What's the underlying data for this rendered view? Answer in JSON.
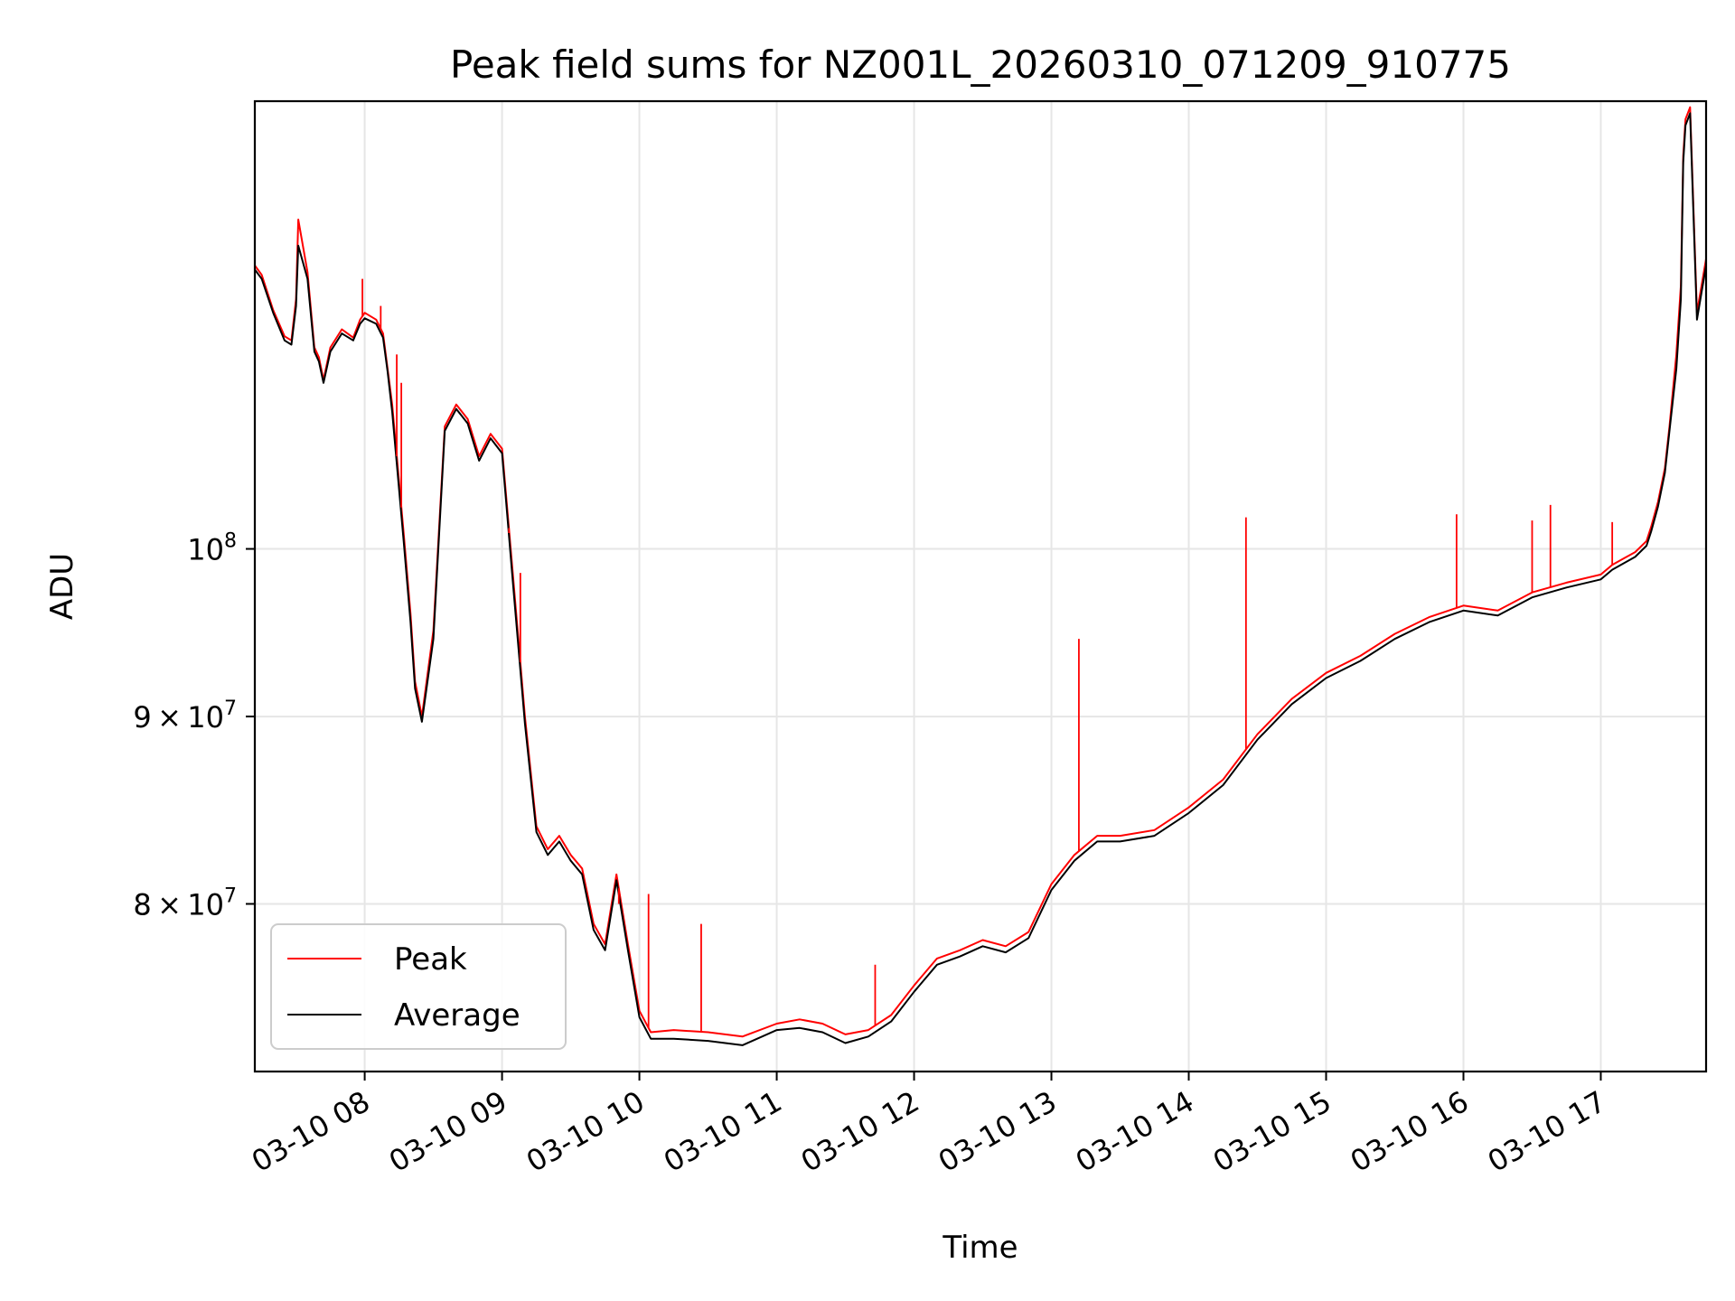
{
  "chart_data": {
    "type": "line",
    "title": "Peak field sums for NZ001L_20260310_071209_910775",
    "xlabel": "Time",
    "ylabel": "ADU",
    "y_scale": "log",
    "grid": true,
    "legend_position": "lower-left",
    "xlim": [
      "2026-03-10 07:12",
      "2026-03-10 17:46"
    ],
    "ylim": [
      72000000,
      132500000
    ],
    "x_ticks": [
      {
        "value": "2026-03-10 08:00",
        "label": "03-10 08"
      },
      {
        "value": "2026-03-10 09:00",
        "label": "03-10 09"
      },
      {
        "value": "2026-03-10 10:00",
        "label": "03-10 10"
      },
      {
        "value": "2026-03-10 11:00",
        "label": "03-10 11"
      },
      {
        "value": "2026-03-10 12:00",
        "label": "03-10 12"
      },
      {
        "value": "2026-03-10 13:00",
        "label": "03-10 13"
      },
      {
        "value": "2026-03-10 14:00",
        "label": "03-10 14"
      },
      {
        "value": "2026-03-10 15:00",
        "label": "03-10 15"
      },
      {
        "value": "2026-03-10 16:00",
        "label": "03-10 16"
      },
      {
        "value": "2026-03-10 17:00",
        "label": "03-10 17"
      }
    ],
    "y_ticks": [
      {
        "value": 80000000,
        "base": "8",
        "exp": "7"
      },
      {
        "value": 90000000,
        "base": "9",
        "exp": "7"
      },
      {
        "value": 100000000,
        "base": "",
        "exp": "8"
      }
    ],
    "tick_mult": "×",
    "tick_ten": "10",
    "series": [
      {
        "name": "Peak",
        "color": "#ff0000",
        "x": [
          "2026-03-10 07:12",
          "2026-03-10 07:15",
          "2026-03-10 07:20",
          "2026-03-10 07:25",
          "2026-03-10 07:28",
          "2026-03-10 07:30",
          "2026-03-10 07:31",
          "2026-03-10 07:35",
          "2026-03-10 07:38",
          "2026-03-10 07:40",
          "2026-03-10 07:42",
          "2026-03-10 07:45",
          "2026-03-10 07:50",
          "2026-03-10 07:55",
          "2026-03-10 07:58",
          "2026-03-10 08:00",
          "2026-03-10 08:05",
          "2026-03-10 08:08",
          "2026-03-10 08:10",
          "2026-03-10 08:12",
          "2026-03-10 08:14",
          "2026-03-10 08:17",
          "2026-03-10 08:20",
          "2026-03-10 08:22",
          "2026-03-10 08:25",
          "2026-03-10 08:30",
          "2026-03-10 08:35",
          "2026-03-10 08:40",
          "2026-03-10 08:45",
          "2026-03-10 08:50",
          "2026-03-10 08:55",
          "2026-03-10 09:00",
          "2026-03-10 09:05",
          "2026-03-10 09:10",
          "2026-03-10 09:15",
          "2026-03-10 09:20",
          "2026-03-10 09:25",
          "2026-03-10 09:30",
          "2026-03-10 09:35",
          "2026-03-10 09:40",
          "2026-03-10 09:45",
          "2026-03-10 09:50",
          "2026-03-10 09:55",
          "2026-03-10 10:00",
          "2026-03-10 10:05",
          "2026-03-10 10:15",
          "2026-03-10 10:30",
          "2026-03-10 10:45",
          "2026-03-10 11:00",
          "2026-03-10 11:10",
          "2026-03-10 11:20",
          "2026-03-10 11:30",
          "2026-03-10 11:40",
          "2026-03-10 11:50",
          "2026-03-10 12:00",
          "2026-03-10 12:10",
          "2026-03-10 12:20",
          "2026-03-10 12:30",
          "2026-03-10 12:40",
          "2026-03-10 12:50",
          "2026-03-10 13:00",
          "2026-03-10 13:10",
          "2026-03-10 13:20",
          "2026-03-10 13:30",
          "2026-03-10 13:45",
          "2026-03-10 14:00",
          "2026-03-10 14:15",
          "2026-03-10 14:30",
          "2026-03-10 14:45",
          "2026-03-10 15:00",
          "2026-03-10 15:15",
          "2026-03-10 15:30",
          "2026-03-10 15:45",
          "2026-03-10 16:00",
          "2026-03-10 16:15",
          "2026-03-10 16:30",
          "2026-03-10 16:45",
          "2026-03-10 17:00",
          "2026-03-10 17:05",
          "2026-03-10 17:10",
          "2026-03-10 17:15",
          "2026-03-10 17:20",
          "2026-03-10 17:22",
          "2026-03-10 17:25",
          "2026-03-10 17:28",
          "2026-03-10 17:30",
          "2026-03-10 17:33",
          "2026-03-10 17:35",
          "2026-03-10 17:36",
          "2026-03-10 17:37",
          "2026-03-10 17:39",
          "2026-03-10 17:42",
          "2026-03-10 17:46"
        ],
        "y": [
          119500000,
          118800000,
          116200000,
          114300000,
          114000000,
          117000000,
          123000000,
          119000000,
          113500000,
          112800000,
          111200000,
          113500000,
          114800000,
          114200000,
          115500000,
          116000000,
          115500000,
          114500000,
          112000000,
          109500000,
          106000000,
          101000000,
          96000000,
          92000000,
          90000000,
          95000000,
          108000000,
          109500000,
          108500000,
          106000000,
          107500000,
          106500000,
          98000000,
          90000000,
          84000000,
          82800000,
          83500000,
          82500000,
          81800000,
          79000000,
          78000000,
          81500000,
          78000000,
          74800000,
          73800000,
          73900000,
          73800000,
          73600000,
          74200000,
          74400000,
          74200000,
          73700000,
          73900000,
          74600000,
          76000000,
          77300000,
          77700000,
          78200000,
          77900000,
          78600000,
          81000000,
          82500000,
          83500000,
          83500000,
          83800000,
          85000000,
          86500000,
          89000000,
          91000000,
          92500000,
          93500000,
          94800000,
          95800000,
          96500000,
          96200000,
          97300000,
          97900000,
          98400000,
          99000000,
          99400000,
          99800000,
          100500000,
          101400000,
          103000000,
          105200000,
          108000000,
          113000000,
          118000000,
          128000000,
          131000000,
          132000000,
          116000000,
          120000000
        ]
      },
      {
        "name": "Average",
        "color": "#000000",
        "x": [
          "2026-03-10 07:12",
          "2026-03-10 07:15",
          "2026-03-10 07:20",
          "2026-03-10 07:25",
          "2026-03-10 07:28",
          "2026-03-10 07:30",
          "2026-03-10 07:31",
          "2026-03-10 07:35",
          "2026-03-10 07:38",
          "2026-03-10 07:40",
          "2026-03-10 07:42",
          "2026-03-10 07:45",
          "2026-03-10 07:50",
          "2026-03-10 07:55",
          "2026-03-10 07:58",
          "2026-03-10 08:00",
          "2026-03-10 08:05",
          "2026-03-10 08:08",
          "2026-03-10 08:10",
          "2026-03-10 08:12",
          "2026-03-10 08:14",
          "2026-03-10 08:17",
          "2026-03-10 08:20",
          "2026-03-10 08:22",
          "2026-03-10 08:25",
          "2026-03-10 08:30",
          "2026-03-10 08:35",
          "2026-03-10 08:40",
          "2026-03-10 08:45",
          "2026-03-10 08:50",
          "2026-03-10 08:55",
          "2026-03-10 09:00",
          "2026-03-10 09:05",
          "2026-03-10 09:10",
          "2026-03-10 09:15",
          "2026-03-10 09:20",
          "2026-03-10 09:25",
          "2026-03-10 09:30",
          "2026-03-10 09:35",
          "2026-03-10 09:40",
          "2026-03-10 09:45",
          "2026-03-10 09:50",
          "2026-03-10 09:55",
          "2026-03-10 10:00",
          "2026-03-10 10:05",
          "2026-03-10 10:15",
          "2026-03-10 10:30",
          "2026-03-10 10:45",
          "2026-03-10 11:00",
          "2026-03-10 11:10",
          "2026-03-10 11:20",
          "2026-03-10 11:30",
          "2026-03-10 11:40",
          "2026-03-10 11:50",
          "2026-03-10 12:00",
          "2026-03-10 12:10",
          "2026-03-10 12:20",
          "2026-03-10 12:30",
          "2026-03-10 12:40",
          "2026-03-10 12:50",
          "2026-03-10 13:00",
          "2026-03-10 13:10",
          "2026-03-10 13:20",
          "2026-03-10 13:30",
          "2026-03-10 13:45",
          "2026-03-10 14:00",
          "2026-03-10 14:15",
          "2026-03-10 14:30",
          "2026-03-10 14:45",
          "2026-03-10 15:00",
          "2026-03-10 15:15",
          "2026-03-10 15:30",
          "2026-03-10 15:45",
          "2026-03-10 16:00",
          "2026-03-10 16:15",
          "2026-03-10 16:30",
          "2026-03-10 16:45",
          "2026-03-10 17:00",
          "2026-03-10 17:05",
          "2026-03-10 17:10",
          "2026-03-10 17:15",
          "2026-03-10 17:20",
          "2026-03-10 17:22",
          "2026-03-10 17:25",
          "2026-03-10 17:28",
          "2026-03-10 17:30",
          "2026-03-10 17:33",
          "2026-03-10 17:35",
          "2026-03-10 17:36",
          "2026-03-10 17:37",
          "2026-03-10 17:39",
          "2026-03-10 17:42",
          "2026-03-10 17:46"
        ],
        "y": [
          119200000,
          118500000,
          116000000,
          114000000,
          113700000,
          116500000,
          121000000,
          118500000,
          113200000,
          112500000,
          111000000,
          113200000,
          114500000,
          114000000,
          115200000,
          115600000,
          115200000,
          114200000,
          111800000,
          109000000,
          105500000,
          100500000,
          95500000,
          91600000,
          89700000,
          94500000,
          107700000,
          109200000,
          108200000,
          105700000,
          107200000,
          106200000,
          97500000,
          89600000,
          83700000,
          82500000,
          83200000,
          82200000,
          81500000,
          78700000,
          77700000,
          81200000,
          77700000,
          74500000,
          73500000,
          73500000,
          73400000,
          73200000,
          73900000,
          74000000,
          73800000,
          73300000,
          73600000,
          74300000,
          75700000,
          77000000,
          77400000,
          77900000,
          77600000,
          78300000,
          80700000,
          82200000,
          83200000,
          83200000,
          83500000,
          84700000,
          86200000,
          88700000,
          90700000,
          92200000,
          93200000,
          94500000,
          95500000,
          96200000,
          95900000,
          97000000,
          97600000,
          98100000,
          98700000,
          99100000,
          99500000,
          100200000,
          101100000,
          102700000,
          104900000,
          107700000,
          112000000,
          117000000,
          127500000,
          130500000,
          131500000,
          115500000,
          119500000
        ]
      }
    ],
    "spikes": [
      {
        "series": "Peak",
        "x": "2026-03-10 07:31",
        "y": 123000000
      },
      {
        "series": "Peak",
        "x": "2026-03-10 07:59",
        "y": 118500000
      },
      {
        "series": "Peak",
        "x": "2026-03-10 08:07",
        "y": 116500000
      },
      {
        "series": "Peak",
        "x": "2026-03-10 08:14",
        "y": 113000000
      },
      {
        "series": "Peak",
        "x": "2026-03-10 08:16",
        "y": 111000000
      },
      {
        "series": "Peak",
        "x": "2026-03-10 09:03",
        "y": 101000000
      },
      {
        "series": "Peak",
        "x": "2026-03-10 09:08",
        "y": 98500000
      },
      {
        "series": "Peak",
        "x": "2026-03-10 09:51",
        "y": 80000000
      },
      {
        "series": "Peak",
        "x": "2026-03-10 10:04",
        "y": 80500000
      },
      {
        "series": "Peak",
        "x": "2026-03-10 10:27",
        "y": 79000000
      },
      {
        "series": "Peak",
        "x": "2026-03-10 11:43",
        "y": 77000000
      },
      {
        "series": "Peak",
        "x": "2026-03-10 13:12",
        "y": 94500000
      },
      {
        "series": "Peak",
        "x": "2026-03-10 14:25",
        "y": 102000000
      },
      {
        "series": "Peak",
        "x": "2026-03-10 15:57",
        "y": 102200000
      },
      {
        "series": "Peak",
        "x": "2026-03-10 16:30",
        "y": 101800000
      },
      {
        "series": "Peak",
        "x": "2026-03-10 16:38",
        "y": 102800000
      },
      {
        "series": "Peak",
        "x": "2026-03-10 17:05",
        "y": 101700000
      }
    ]
  }
}
